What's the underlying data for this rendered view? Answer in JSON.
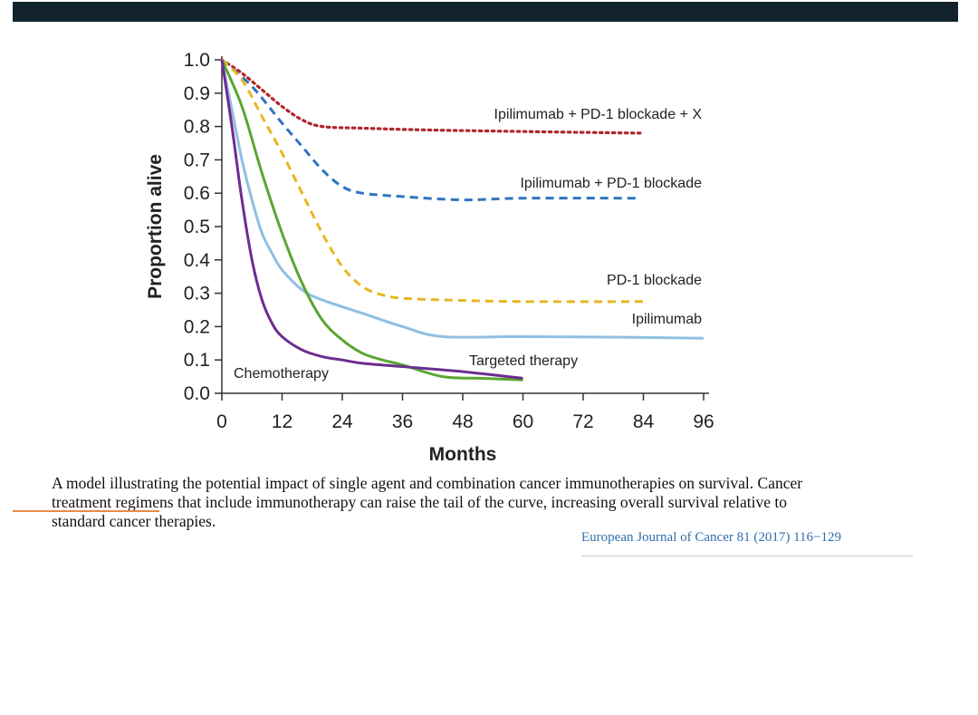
{
  "caption": {
    "lines": [
      "A model illustrating the potential impact of single agent and combination cancer immunotherapies on survival. Cancer",
      "treatment regimens that include immunotherapy can raise the tail of the curve, increasing overall survival relative to",
      "standard cancer therapies."
    ]
  },
  "citation": "European Journal of Cancer 81 (2017) 116−129",
  "colors": {
    "top_bar": "#12232e",
    "underline_mark": "#e8894a",
    "citation_text": "#2f6fad"
  },
  "chart_data": {
    "type": "line",
    "title": "",
    "xlabel": "Months",
    "ylabel": "Proportion alive",
    "xlim": [
      0,
      96
    ],
    "ylim": [
      0,
      1
    ],
    "xticks": [
      0,
      12,
      24,
      36,
      48,
      60,
      72,
      84,
      96
    ],
    "yticks": [
      "0.0",
      "0.1",
      "0.2",
      "0.3",
      "0.4",
      "0.5",
      "0.6",
      "0.7",
      "0.8",
      "0.9",
      "1.0"
    ],
    "grid": false,
    "series": [
      {
        "name": "Ipilimumab + PD-1 blockade + X",
        "color": "#b0262c",
        "style": "dotted",
        "x": [
          0,
          4,
          8,
          12,
          16,
          20,
          28,
          40,
          60,
          84
        ],
        "y": [
          1.0,
          0.96,
          0.91,
          0.86,
          0.82,
          0.8,
          0.795,
          0.79,
          0.785,
          0.78
        ]
      },
      {
        "name": "Ipilimumab + PD-1 blockade",
        "color": "#2f74c0",
        "style": "dashed",
        "x": [
          0,
          6,
          12,
          16,
          20,
          24,
          28,
          36,
          48,
          60,
          83
        ],
        "y": [
          1.0,
          0.92,
          0.81,
          0.74,
          0.67,
          0.62,
          0.6,
          0.59,
          0.58,
          0.585,
          0.585
        ]
      },
      {
        "name": "PD-1 blockade",
        "color": "#e8b622",
        "style": "dashed",
        "x": [
          0,
          4,
          8,
          12,
          16,
          20,
          24,
          28,
          32,
          36,
          44,
          60,
          84
        ],
        "y": [
          1.0,
          0.94,
          0.83,
          0.72,
          0.6,
          0.48,
          0.38,
          0.32,
          0.295,
          0.285,
          0.28,
          0.275,
          0.275
        ]
      },
      {
        "name": "Ipilimumab",
        "color": "#8fbfe3",
        "style": "solid",
        "x": [
          0,
          2,
          4,
          6,
          8,
          10,
          12,
          16,
          20,
          28,
          36,
          44,
          60,
          80,
          96
        ],
        "y": [
          1.0,
          0.85,
          0.7,
          0.58,
          0.48,
          0.42,
          0.37,
          0.31,
          0.28,
          0.24,
          0.2,
          0.17,
          0.17,
          0.168,
          0.165
        ]
      },
      {
        "name": "Targeted therapy",
        "color": "#5aa632",
        "style": "solid",
        "x": [
          0,
          4,
          8,
          12,
          16,
          20,
          24,
          28,
          32,
          36,
          44,
          52,
          60
        ],
        "y": [
          1.0,
          0.86,
          0.66,
          0.48,
          0.33,
          0.22,
          0.16,
          0.12,
          0.1,
          0.085,
          0.05,
          0.045,
          0.04
        ]
      },
      {
        "name": "Chemotherapy",
        "color": "#6c2d91",
        "style": "solid",
        "x": [
          0,
          2,
          4,
          6,
          8,
          10,
          12,
          16,
          20,
          24,
          28,
          36,
          48,
          60
        ],
        "y": [
          1.0,
          0.8,
          0.58,
          0.4,
          0.28,
          0.21,
          0.17,
          0.13,
          0.11,
          0.1,
          0.09,
          0.08,
          0.065,
          0.045
        ]
      }
    ]
  }
}
